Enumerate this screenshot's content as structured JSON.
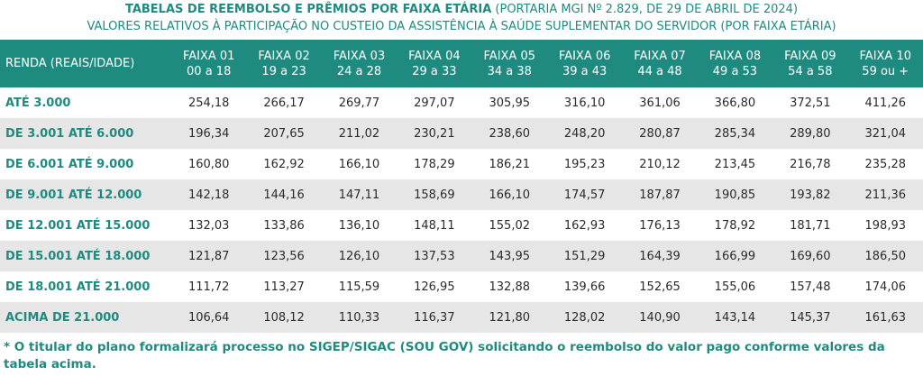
{
  "header": {
    "title_bold": "TABELAS DE REEMBOLSO E PRÊMIOS POR FAIXA ETÁRIA",
    "title_rest": "(PORTARIA MGI Nº 2.829, DE 29 DE ABRIL DE 2024)",
    "subtitle": "VALORES RELATIVOS À PARTICIPAÇÃO NO CUSTEIO DA ASSISTÊNCIA À SAÚDE SUPLEMENTAR DO SERVIDOR (POR FAIXA ETÁRIA)"
  },
  "table": {
    "corner": "RENDA (REAIS/IDADE)",
    "columns": [
      {
        "name": "FAIXA 01",
        "range": "00 a 18"
      },
      {
        "name": "FAIXA 02",
        "range": "19 a 23"
      },
      {
        "name": "FAIXA 03",
        "range": "24 a 28"
      },
      {
        "name": "FAIXA 04",
        "range": "29 a 33"
      },
      {
        "name": "FAIXA 05",
        "range": "34 a 38"
      },
      {
        "name": "FAIXA 06",
        "range": "39 a 43"
      },
      {
        "name": "FAIXA 07",
        "range": "44 a 48"
      },
      {
        "name": "FAIXA 08",
        "range": "49 a 53"
      },
      {
        "name": "FAIXA 09",
        "range": "54 a 58"
      },
      {
        "name": "FAIXA 10",
        "range": "59 ou +"
      }
    ],
    "rows": [
      {
        "label": "ATÉ 3.000",
        "cells": [
          "254,18",
          "266,17",
          "269,77",
          "297,07",
          "305,95",
          "316,10",
          "361,06",
          "366,80",
          "372,51",
          "411,26"
        ]
      },
      {
        "label": "DE 3.001 ATÉ 6.000",
        "cells": [
          "196,34",
          "207,65",
          "211,02",
          "230,21",
          "238,60",
          "248,20",
          "280,87",
          "285,34",
          "289,80",
          "321,04"
        ]
      },
      {
        "label": "DE 6.001 ATÉ 9.000",
        "cells": [
          "160,80",
          "162,92",
          "166,10",
          "178,29",
          "186,21",
          "195,23",
          "210,12",
          "213,45",
          "216,78",
          "235,28"
        ]
      },
      {
        "label": "DE 9.001 ATÉ 12.000",
        "cells": [
          "142,18",
          "144,16",
          "147,11",
          "158,69",
          "166,10",
          "174,57",
          "187,87",
          "190,85",
          "193,82",
          "211,36"
        ]
      },
      {
        "label": "DE 12.001 ATÉ 15.000",
        "cells": [
          "132,03",
          "133,86",
          "136,10",
          "148,11",
          "155,02",
          "162,93",
          "176,13",
          "178,92",
          "181,71",
          "198,93"
        ]
      },
      {
        "label": "DE 15.001 ATÉ 18.000",
        "cells": [
          "121,87",
          "123,56",
          "126,10",
          "137,53",
          "143,95",
          "151,29",
          "164,39",
          "166,99",
          "169,60",
          "186,50"
        ]
      },
      {
        "label": "DE 18.001 ATÉ 21.000",
        "cells": [
          "111,72",
          "113,27",
          "115,59",
          "126,95",
          "132,88",
          "139,66",
          "152,65",
          "155,06",
          "157,48",
          "174,06"
        ]
      },
      {
        "label": "ACIMA DE 21.000",
        "cells": [
          "106,64",
          "108,12",
          "110,33",
          "116,37",
          "121,80",
          "128,02",
          "140,90",
          "143,14",
          "145,37",
          "161,63"
        ]
      }
    ]
  },
  "footnote": "* O titular do plano formalizará processo no SIGEP/SIGAC (SOU GOV) solicitando o reembolso do valor pago conforme valores da tabela acima."
}
